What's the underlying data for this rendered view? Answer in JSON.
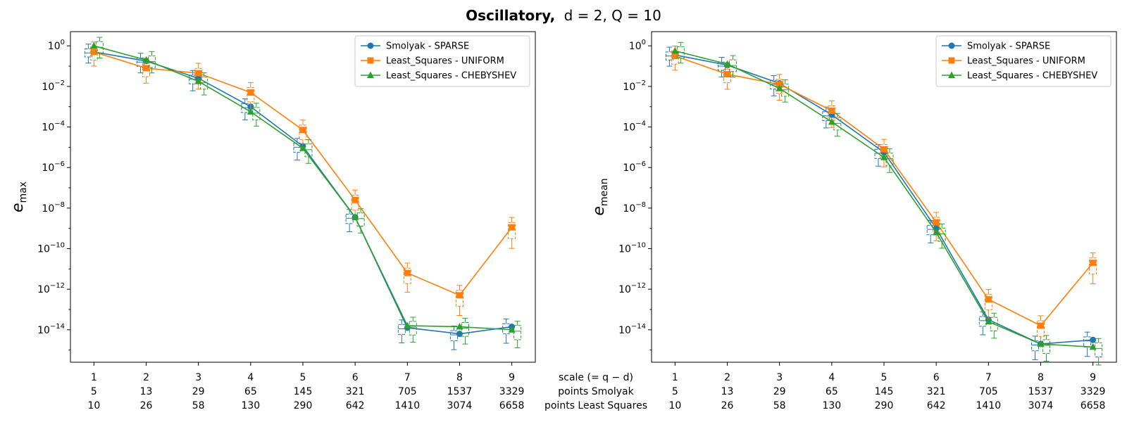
{
  "figure": {
    "title_bold": "Oscillatory,",
    "title_math": "d = 2, Q = 10"
  },
  "row_labels": [
    "scale (= q − d)",
    "points Smolyak",
    "points Least Squares"
  ],
  "x_ticks": {
    "scale": [
      "1",
      "2",
      "3",
      "4",
      "5",
      "6",
      "7",
      "8",
      "9"
    ],
    "points_smolyak": [
      "5",
      "13",
      "29",
      "65",
      "145",
      "321",
      "705",
      "1537",
      "3329"
    ],
    "points_least_squares": [
      "10",
      "26",
      "58",
      "130",
      "290",
      "642",
      "1410",
      "3074",
      "6658"
    ]
  },
  "chart_data": [
    {
      "type": "line",
      "y_scale": "log",
      "ylabel_base": "e",
      "ylabel_sub": "max",
      "ylim_exponent": [
        -15.6,
        0.7
      ],
      "y_tick_exponents": [
        0,
        -2,
        -4,
        -6,
        -8,
        -10,
        -12,
        -14
      ],
      "legend_position": "top-right",
      "grid": false,
      "x": [
        1,
        2,
        3,
        4,
        5,
        6,
        7,
        8,
        9
      ],
      "series": [
        {
          "name": "Smolyak - SPARSE",
          "color": "#1f77b4",
          "marker": "circle",
          "log10_values": [
            -0.3,
            -0.75,
            -1.6,
            -3.0,
            -4.95,
            -8.45,
            -13.9,
            -14.2,
            -13.85
          ]
        },
        {
          "name": "Least_Squares - UNIFORM",
          "color": "#ff7f0e",
          "marker": "square",
          "log10_values": [
            -0.3,
            -1.1,
            -1.35,
            -2.3,
            -4.15,
            -7.6,
            -11.2,
            -12.3,
            -8.95
          ]
        },
        {
          "name": "Least_Squares - CHEBYSHEV",
          "color": "#2ca02c",
          "marker": "triangle",
          "log10_values": [
            0.0,
            -0.7,
            -1.75,
            -3.25,
            -5.05,
            -8.45,
            -13.8,
            -13.85,
            -14.0
          ]
        }
      ]
    },
    {
      "type": "line",
      "y_scale": "log",
      "ylabel_base": "e",
      "ylabel_sub": "mean",
      "ylim_exponent": [
        -15.6,
        0.7
      ],
      "y_tick_exponents": [
        0,
        -2,
        -4,
        -6,
        -8,
        -10,
        -12,
        -14
      ],
      "legend_position": "top-right",
      "grid": false,
      "x": [
        1,
        2,
        3,
        4,
        5,
        6,
        7,
        8,
        9
      ],
      "series": [
        {
          "name": "Smolyak - SPARSE",
          "color": "#1f77b4",
          "marker": "circle",
          "log10_values": [
            -0.45,
            -0.95,
            -1.85,
            -3.4,
            -5.25,
            -9.0,
            -13.5,
            -14.7,
            -14.5
          ]
        },
        {
          "name": "Least_Squares - UNIFORM",
          "color": "#ff7f0e",
          "marker": "square",
          "log10_values": [
            -0.5,
            -1.4,
            -1.9,
            -3.2,
            -5.1,
            -8.7,
            -12.5,
            -13.8,
            -10.7
          ]
        },
        {
          "name": "Least_Squares - CHEBYSHEV",
          "color": "#2ca02c",
          "marker": "triangle",
          "log10_values": [
            -0.25,
            -0.9,
            -2.1,
            -3.75,
            -5.5,
            -9.2,
            -13.6,
            -14.7,
            -14.85
          ]
        }
      ]
    }
  ]
}
